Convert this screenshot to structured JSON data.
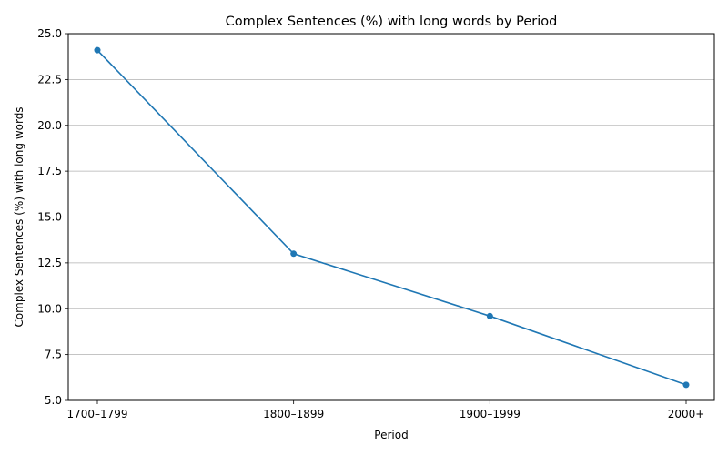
{
  "chart_data": {
    "type": "line",
    "title": "Complex Sentences (%) with long words by Period",
    "xlabel": "Period",
    "ylabel": "Complex Sentences (%) with long words",
    "categories": [
      "1700–1799",
      "1800–1899",
      "1900–1999",
      "2000+"
    ],
    "values": [
      24.1,
      13.0,
      9.6,
      5.85
    ],
    "ylim": [
      5.0,
      25.0
    ],
    "yticks": [
      5.0,
      7.5,
      10.0,
      12.5,
      15.0,
      17.5,
      20.0,
      22.5,
      25.0
    ],
    "ytick_labels": [
      "5.0",
      "7.5",
      "10.0",
      "12.5",
      "15.0",
      "17.5",
      "20.0",
      "22.5",
      "25.0"
    ],
    "grid": "horizontal",
    "line_color": "#1f77b4",
    "grid_color": "#b0b0b0"
  }
}
